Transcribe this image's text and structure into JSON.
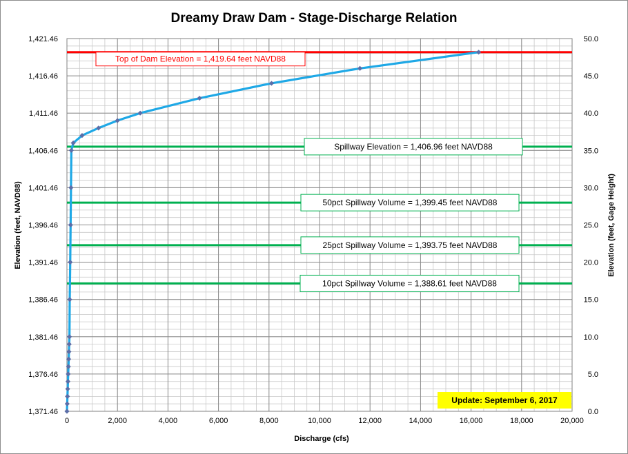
{
  "chart_data": {
    "type": "line",
    "title": "Dreamy Draw Dam - Stage-Discharge Relation",
    "xlabel": "Discharge  (cfs)",
    "ylabel": "Elevation  (feet, NAVD88)",
    "y2label": "Elevation  (feet, Gage Height)",
    "xlim": [
      0,
      20000
    ],
    "ylim": [
      1371.46,
      1421.46
    ],
    "y2lim": [
      0.0,
      50.0
    ],
    "x_ticks": [
      "0",
      "2,000",
      "4,000",
      "6,000",
      "8,000",
      "10,000",
      "12,000",
      "14,000",
      "16,000",
      "18,000",
      "20,000"
    ],
    "y_ticks": [
      "1,371.46",
      "1,376.46",
      "1,381.46",
      "1,386.46",
      "1,391.46",
      "1,396.46",
      "1,401.46",
      "1,406.46",
      "1,411.46",
      "1,416.46",
      "1,421.46"
    ],
    "y2_ticks": [
      "0.0",
      "5.0",
      "10.0",
      "15.0",
      "20.0",
      "25.0",
      "30.0",
      "35.0",
      "40.0",
      "45.0",
      "50.0"
    ],
    "grid": true,
    "series": [
      {
        "color": "#1ea8e6",
        "marker_color": "#5b6ea8",
        "points": [
          [
            0,
            1371.46
          ],
          [
            10,
            1372.46
          ],
          [
            20,
            1373.46
          ],
          [
            30,
            1374.46
          ],
          [
            40,
            1375.46
          ],
          [
            50,
            1376.46
          ],
          [
            60,
            1377.46
          ],
          [
            70,
            1378.46
          ],
          [
            80,
            1379.46
          ],
          [
            90,
            1380.46
          ],
          [
            100,
            1381.46
          ],
          [
            110,
            1386.46
          ],
          [
            130,
            1391.46
          ],
          [
            145,
            1396.46
          ],
          [
            160,
            1401.46
          ],
          [
            175,
            1406.46
          ],
          [
            250,
            1407.46
          ],
          [
            600,
            1408.46
          ],
          [
            1250,
            1409.46
          ],
          [
            2000,
            1410.46
          ],
          [
            2900,
            1411.46
          ],
          [
            5250,
            1413.46
          ],
          [
            8100,
            1415.46
          ],
          [
            11600,
            1417.46
          ],
          [
            16300,
            1419.64
          ]
        ]
      }
    ],
    "reference_lines": [
      {
        "y": 1419.64,
        "color": "#ff0000",
        "label": "Top of Dam Elevation = 1,419.64 feet NAVD88"
      },
      {
        "y": 1406.96,
        "color": "#00b050",
        "label": "Spillway Elevation = 1,406.96  feet NAVD88"
      },
      {
        "y": 1399.45,
        "color": "#00b050",
        "label": "50pct Spillway Volume = 1,399.45  feet NAVD88"
      },
      {
        "y": 1393.75,
        "color": "#00b050",
        "label": "25pct Spillway Volume = 1,393.75  feet NAVD88"
      },
      {
        "y": 1388.61,
        "color": "#00b050",
        "label": "10pct Spillway Volume = 1,388.61  feet NAVD88"
      }
    ],
    "update_note": "Update: September 6, 2017",
    "update_color": "#ffff00"
  }
}
